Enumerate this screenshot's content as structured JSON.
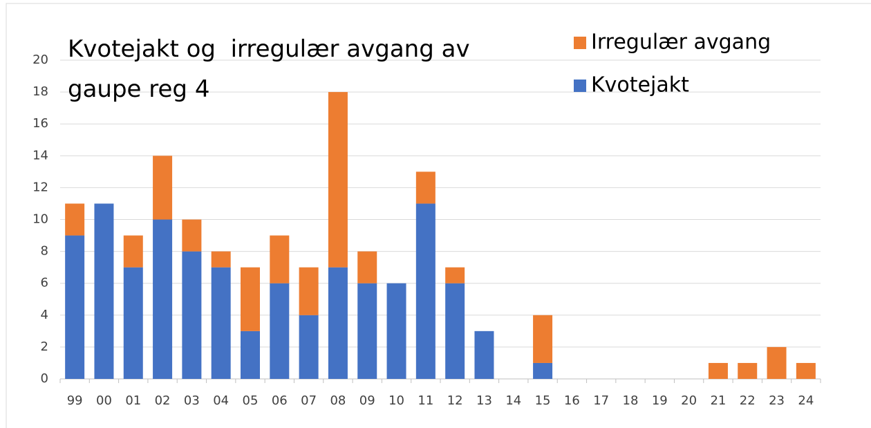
{
  "chart_data": {
    "type": "stacked_bar",
    "title": "Kvotejakt og  irregulær avgang av gaupe reg 4",
    "categories": [
      "99",
      "00",
      "01",
      "02",
      "03",
      "04",
      "05",
      "06",
      "07",
      "08",
      "09",
      "10",
      "11",
      "12",
      "13",
      "14",
      "15",
      "16",
      "17",
      "18",
      "19",
      "20",
      "21",
      "22",
      "23",
      "24"
    ],
    "series": [
      {
        "name": "Kvotejakt",
        "color": "#4472c4",
        "values": [
          9,
          11,
          7,
          10,
          8,
          7,
          3,
          6,
          4,
          7,
          6,
          6,
          11,
          6,
          3,
          0,
          1,
          0,
          0,
          0,
          0,
          0,
          0,
          0,
          0,
          0
        ]
      },
      {
        "name": "Irregulær avgang",
        "color": "#ed7d31",
        "values": [
          2,
          0,
          2,
          4,
          2,
          1,
          4,
          3,
          3,
          11,
          2,
          0,
          2,
          1,
          0,
          0,
          3,
          0,
          0,
          0,
          0,
          0,
          1,
          1,
          2,
          1
        ]
      }
    ],
    "ylim": [
      0,
      20
    ],
    "yticks": [
      0,
      2,
      4,
      6,
      8,
      10,
      12,
      14,
      16,
      18,
      20
    ],
    "grid": true,
    "legend": "top-right"
  }
}
